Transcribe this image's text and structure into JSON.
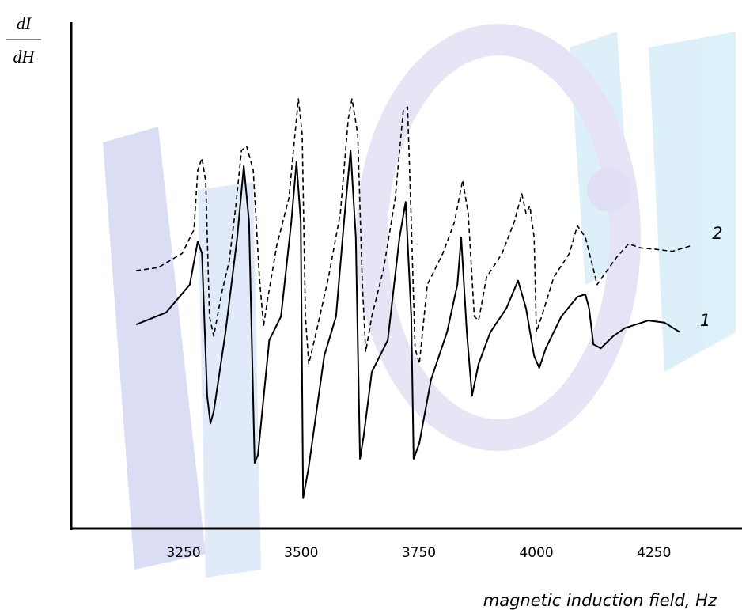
{
  "chart_data": {
    "type": "line",
    "ylabel_top": "dI",
    "ylabel_bottom": "dH",
    "xlabel": "magnetic induction field, Hz",
    "xlim": [
      3011,
      4437
    ],
    "ylim": [
      0,
      100
    ],
    "xticks": [
      3250,
      3500,
      3750,
      4000,
      4250
    ],
    "series": [
      {
        "name": "1",
        "color": "#000000",
        "style": "solid",
        "x": [
          3149,
          3213,
          3263,
          3280,
          3289,
          3300,
          3307,
          3314,
          3339,
          3364,
          3378,
          3389,
          3401,
          3408,
          3432,
          3457,
          3479,
          3490,
          3499,
          3504,
          3516,
          3549,
          3574,
          3591,
          3605,
          3616,
          3625,
          3633,
          3650,
          3684,
          3709,
          3722,
          3734,
          3739,
          3751,
          3776,
          3810,
          3832,
          3840,
          3852,
          3863,
          3877,
          3902,
          3936,
          3961,
          3978,
          3995,
          4006,
          4020,
          4053,
          4087,
          4104,
          4112,
          4121,
          4137,
          4163,
          4188,
          4238,
          4272,
          4305
        ],
        "values": [
          40.4,
          42.8,
          48.3,
          56.9,
          54.5,
          26.3,
          20.8,
          23.2,
          38.9,
          57.7,
          71.8,
          60.8,
          13.0,
          14.6,
          37.3,
          42.0,
          60.8,
          72.6,
          60.8,
          6.0,
          12.2,
          34.2,
          42.0,
          60.8,
          74.9,
          57.7,
          13.8,
          18.5,
          31.0,
          37.3,
          57.7,
          64.7,
          42.0,
          13.8,
          16.9,
          29.5,
          38.9,
          48.3,
          57.7,
          38.9,
          26.3,
          32.6,
          38.9,
          43.6,
          49.1,
          43.6,
          34.2,
          31.8,
          35.7,
          42.0,
          45.9,
          46.4,
          43.6,
          36.5,
          35.7,
          38.1,
          39.7,
          41.2,
          40.8,
          38.9
        ]
      },
      {
        "name": "2",
        "color": "#000000",
        "style": "dashed",
        "x": [
          3149,
          3196,
          3247,
          3272,
          3280,
          3289,
          3297,
          3305,
          3314,
          3331,
          3347,
          3361,
          3373,
          3384,
          3398,
          3411,
          3420,
          3428,
          3448,
          3474,
          3485,
          3494,
          3502,
          3509,
          3516,
          3532,
          3558,
          3583,
          3600,
          3608,
          3620,
          3630,
          3637,
          3650,
          3675,
          3700,
          3717,
          3726,
          3734,
          3742,
          3751,
          3768,
          3801,
          3826,
          3843,
          3855,
          3868,
          3877,
          3894,
          3927,
          3953,
          3969,
          3978,
          3986,
          3995,
          4000,
          4011,
          4037,
          4070,
          4087,
          4104,
          4121,
          4129,
          4146,
          4171,
          4196,
          4221,
          4255,
          4289,
          4331
        ],
        "values": [
          51.1,
          51.7,
          54.5,
          59.2,
          71.0,
          73.4,
          68.7,
          42.0,
          38.1,
          46.7,
          53.0,
          63.9,
          74.9,
          75.7,
          71.0,
          49.8,
          40.1,
          45.1,
          56.1,
          65.5,
          76.5,
          85.1,
          78.1,
          42.0,
          32.6,
          38.9,
          49.8,
          62.4,
          81.2,
          85.1,
          78.1,
          48.3,
          35.0,
          42.0,
          51.4,
          65.5,
          82.8,
          83.5,
          60.8,
          35.7,
          32.6,
          48.3,
          54.5,
          60.8,
          69.0,
          62.4,
          42.0,
          41.2,
          49.8,
          54.5,
          60.8,
          66.3,
          62.4,
          63.9,
          57.7,
          38.9,
          42.0,
          49.8,
          54.5,
          60.0,
          57.7,
          51.4,
          48.3,
          50.6,
          53.8,
          56.4,
          55.6,
          55.3,
          54.9,
          56.1
        ]
      }
    ]
  }
}
